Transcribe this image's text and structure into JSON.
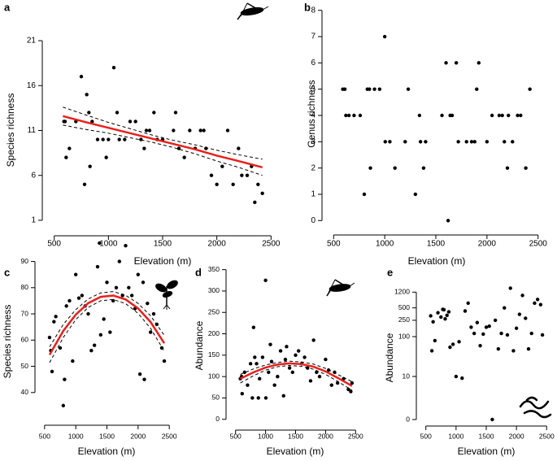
{
  "chart_data": [
    {
      "type": "scatter",
      "panel": "a",
      "xlabel": "Elevation (m)",
      "ylabel": "Species richness",
      "xlim": [
        450,
        2550
      ],
      "xticks": [
        500,
        1000,
        1500,
        2000,
        2500
      ],
      "ylim": [
        0,
        22
      ],
      "yticks": [
        1,
        6,
        11,
        16,
        21
      ],
      "color": "#000000",
      "x": [
        590,
        600,
        610,
        640,
        700,
        750,
        780,
        800,
        820,
        830,
        850,
        900,
        950,
        980,
        1000,
        1050,
        1080,
        1100,
        1150,
        1200,
        1250,
        1300,
        1330,
        1350,
        1380,
        1420,
        1450,
        1500,
        1600,
        1620,
        1650,
        1700,
        1750,
        1800,
        1850,
        1880,
        1900,
        1950,
        2000,
        2050,
        2100,
        2150,
        2200,
        2230,
        2280,
        2320,
        2350,
        2380,
        2420
      ],
      "values": [
        12,
        12,
        8,
        9,
        12,
        17,
        5,
        15,
        13,
        7,
        12,
        10,
        10,
        8,
        10,
        18,
        13,
        10,
        10,
        12,
        12,
        10,
        9,
        11,
        11,
        13,
        10,
        10,
        11,
        13,
        9,
        8,
        11,
        9,
        11,
        11,
        9,
        6,
        5,
        7,
        11,
        5,
        9,
        6,
        6,
        7,
        3,
        5,
        4
      ],
      "fit": {
        "color": "#e8201b",
        "x": [
          580,
          800,
          1000,
          1200,
          1400,
          1600,
          1800,
          2000,
          2200,
          2420
        ],
        "values": [
          12.6,
          11.9,
          11.3,
          10.7,
          10.1,
          9.5,
          8.9,
          8.2,
          7.6,
          6.9
        ],
        "lower": [
          11.6,
          11.1,
          10.7,
          10.2,
          9.7,
          9.1,
          8.4,
          7.6,
          6.9,
          6.0
        ],
        "upper": [
          13.6,
          12.7,
          11.9,
          11.2,
          10.5,
          9.9,
          9.4,
          8.8,
          8.3,
          7.8
        ]
      }
    },
    {
      "type": "scatter",
      "panel": "b",
      "xlabel": "Elevation (m)",
      "ylabel": "Genus richness",
      "xlim": [
        450,
        2550
      ],
      "xticks": [
        500,
        1000,
        1500,
        2000,
        2500
      ],
      "ylim": [
        -0.3,
        8.3
      ],
      "yticks": [
        0,
        1,
        2,
        3,
        4,
        5,
        6,
        7,
        8
      ],
      "color": "#000000",
      "x": [
        590,
        610,
        620,
        650,
        700,
        760,
        800,
        830,
        850,
        860,
        900,
        950,
        1000,
        1005,
        1050,
        1100,
        1200,
        1230,
        1300,
        1340,
        1350,
        1380,
        1400,
        1560,
        1600,
        1620,
        1640,
        1660,
        1700,
        1720,
        1800,
        1850,
        1880,
        1900,
        1920,
        2000,
        2050,
        2120,
        2150,
        2170,
        2200,
        2210,
        2250,
        2300,
        2330,
        2380,
        2420
      ],
      "values": [
        5,
        5,
        4,
        4,
        4,
        4,
        1,
        5,
        5,
        2,
        5,
        5,
        7,
        3,
        3,
        2,
        3,
        5,
        1,
        4,
        3,
        2,
        3,
        4,
        6,
        0,
        4,
        4,
        6,
        3,
        3,
        3,
        3,
        5,
        6,
        3,
        4,
        4,
        4,
        3,
        2,
        4,
        3,
        4,
        4,
        2,
        5
      ]
    },
    {
      "type": "scatter",
      "panel": "c",
      "xlabel": "Elevation (m)",
      "ylabel": "Species richness",
      "xlim": [
        450,
        2550
      ],
      "xticks": [
        500,
        1000,
        1500,
        2000,
        2500
      ],
      "ylim": [
        30,
        97
      ],
      "yticks": [
        40,
        50,
        60,
        70,
        80,
        90
      ],
      "color": "#000000",
      "x": [
        580,
        600,
        620,
        650,
        680,
        750,
        800,
        820,
        850,
        900,
        950,
        1000,
        1050,
        1100,
        1150,
        1200,
        1250,
        1300,
        1350,
        1380,
        1400,
        1450,
        1500,
        1550,
        1600,
        1650,
        1700,
        1750,
        1800,
        1850,
        1900,
        1950,
        2000,
        2030,
        2080,
        2100,
        2150,
        2200,
        2250,
        2300,
        2380,
        2420
      ],
      "values": [
        61,
        56,
        48,
        67,
        69,
        57,
        35,
        45,
        73,
        75,
        52,
        85,
        76,
        77,
        73,
        70,
        56,
        58,
        88,
        97,
        62,
        68,
        82,
        63,
        75,
        80,
        90,
        77,
        96,
        80,
        77,
        72,
        85,
        47,
        82,
        45,
        74,
        63,
        70,
        66,
        57,
        52
      ],
      "fit": {
        "color": "#e8201b",
        "x": [
          580,
          800,
          1000,
          1200,
          1400,
          1600,
          1800,
          2000,
          2200,
          2420
        ],
        "values": [
          54.4,
          63.5,
          69.7,
          74.1,
          76.5,
          77.0,
          75.5,
          72.1,
          66.9,
          58.8
        ],
        "lower": [
          51.4,
          61.0,
          67.8,
          72.5,
          75.0,
          75.5,
          73.9,
          70.2,
          64.5,
          55.8
        ],
        "upper": [
          57.4,
          66.0,
          71.6,
          75.7,
          78.0,
          78.5,
          77.1,
          74.0,
          69.3,
          61.8
        ]
      }
    },
    {
      "type": "scatter",
      "panel": "d",
      "xlabel": "Elevation (m)",
      "ylabel": "Abundance",
      "xlim": [
        450,
        2550
      ],
      "xticks": [
        500,
        1000,
        1500,
        2000,
        2500
      ],
      "ylim": [
        -10,
        355
      ],
      "yticks": [
        0,
        50,
        100,
        150,
        200,
        250,
        300,
        350
      ],
      "color": "#000000",
      "x": [
        580,
        600,
        610,
        650,
        700,
        750,
        780,
        800,
        820,
        850,
        880,
        900,
        950,
        1000,
        1005,
        1050,
        1080,
        1100,
        1150,
        1200,
        1250,
        1300,
        1330,
        1350,
        1400,
        1450,
        1500,
        1550,
        1600,
        1650,
        1700,
        1750,
        1800,
        1850,
        1900,
        2000,
        2050,
        2100,
        2150,
        2200,
        2300,
        2380,
        2420,
        2440
      ],
      "values": [
        95,
        100,
        60,
        110,
        80,
        130,
        50,
        215,
        145,
        130,
        50,
        95,
        145,
        325,
        50,
        110,
        175,
        135,
        80,
        100,
        160,
        55,
        140,
        170,
        120,
        110,
        150,
        160,
        130,
        145,
        120,
        90,
        185,
        110,
        100,
        140,
        115,
        80,
        110,
        85,
        95,
        70,
        65,
        85
      ],
      "fit": {
        "color": "#e8201b",
        "x": [
          580,
          800,
          1000,
          1200,
          1400,
          1600,
          1800,
          2000,
          2200,
          2440
        ],
        "values": [
          95,
          110,
          121,
          128,
          131,
          129,
          123,
          112,
          97,
          78
        ],
        "lower": [
          85,
          102,
          115,
          123,
          126,
          124,
          117,
          105,
          89,
          68
        ],
        "upper": [
          105,
          118,
          127,
          133,
          136,
          134,
          129,
          119,
          105,
          88
        ]
      }
    },
    {
      "type": "scatter",
      "panel": "e",
      "xlabel": "Elevation (m)",
      "ylabel": "Abundance",
      "yscale": "log1p",
      "xlim": [
        450,
        2550
      ],
      "xticks": [
        500,
        1000,
        1500,
        2000,
        2500
      ],
      "ylim": [
        0,
        1600
      ],
      "yticks": [
        0,
        10,
        100,
        250,
        500,
        1200
      ],
      "color": "#000000",
      "x": [
        580,
        600,
        620,
        650,
        700,
        750,
        780,
        800,
        820,
        850,
        880,
        900,
        950,
        1000,
        1050,
        1100,
        1150,
        1200,
        1250,
        1300,
        1350,
        1400,
        1450,
        1500,
        1550,
        1600,
        1650,
        1700,
        1750,
        1800,
        1850,
        1900,
        1950,
        2000,
        2050,
        2100,
        2150,
        2200,
        2250,
        2300,
        2350,
        2400,
        2430
      ],
      "values": [
        320,
        45,
        230,
        80,
        380,
        300,
        460,
        450,
        270,
        330,
        400,
        55,
        65,
        10,
        75,
        9,
        420,
        650,
        170,
        120,
        220,
        60,
        115,
        170,
        180,
        0,
        250,
        50,
        120,
        500,
        110,
        1500,
        45,
        160,
        350,
        1000,
        280,
        50,
        120,
        650,
        800,
        600,
        110
      ]
    }
  ]
}
